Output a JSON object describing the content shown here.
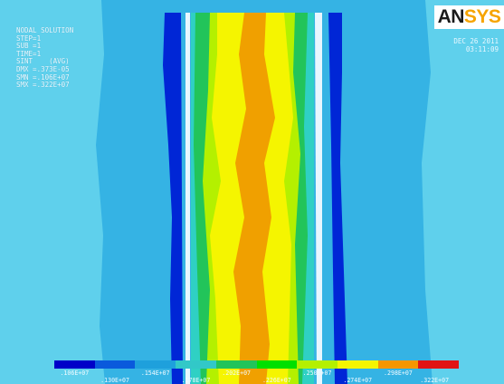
{
  "info": {
    "title": "NODAL SOLUTION",
    "lines": [
      "STEP=1",
      "SUB =1",
      "TIME=1",
      "SINT    (AVG)",
      "DMX =.373E-05",
      "SMN =.106E+07",
      "SMX =.322E+07"
    ]
  },
  "logo": {
    "part1": "AN",
    "part2": "SYS"
  },
  "date": {
    "date": "DEC 26 2011",
    "time": "03:11:09"
  },
  "legend": {
    "colors": [
      "#0000c8",
      "#0a5adc",
      "#1ea0dc",
      "#32c8c8",
      "#22c45a",
      "#00e000",
      "#b4f000",
      "#f5f500",
      "#f59600",
      "#e11414"
    ],
    "upper_labels": [
      ".106E+07",
      ".154E+07",
      ".202E+07",
      ".250E+07",
      ".298E+07"
    ],
    "lower_labels": [
      ".130E+07",
      ".178E+07",
      ".226E+07",
      ".274E+07",
      ".322E+07"
    ]
  },
  "contour": {
    "background": "#35b3e4",
    "band_colors": {
      "outer": "#35b3e4",
      "light": "#5fd0ec",
      "blue": "#0026d6",
      "white": "#e8f7ff",
      "cyan": "#2fd0c4",
      "green": "#22c45a",
      "lime": "#b4f000",
      "yellow": "#f5f500",
      "orange": "#f0a000"
    }
  }
}
